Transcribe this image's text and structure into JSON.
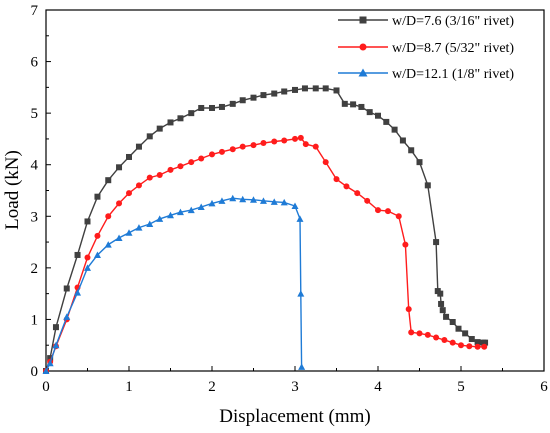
{
  "chart_data": {
    "type": "line",
    "xlabel": "Displacement (mm)",
    "ylabel": "Load (kN)",
    "xlim": [
      0,
      6
    ],
    "ylim": [
      0,
      7
    ],
    "xticks": [
      0,
      1,
      2,
      3,
      4,
      5,
      6
    ],
    "yticks": [
      0,
      1,
      2,
      3,
      4,
      5,
      6,
      7
    ],
    "grid": false,
    "legend_position": "top-right",
    "series": [
      {
        "name": "w/D=7.6 (3/16\" rivet)",
        "color": "#404040",
        "marker": "square",
        "x": [
          0,
          0.05,
          0.12,
          0.25,
          0.38,
          0.5,
          0.62,
          0.75,
          0.88,
          1.0,
          1.12,
          1.25,
          1.37,
          1.5,
          1.62,
          1.75,
          1.87,
          2.0,
          2.12,
          2.25,
          2.37,
          2.5,
          2.62,
          2.75,
          2.87,
          3.0,
          3.12,
          3.25,
          3.37,
          3.5,
          3.6,
          3.7,
          3.8,
          3.9,
          4.0,
          4.1,
          4.2,
          4.3,
          4.4,
          4.5,
          4.6,
          4.7,
          4.72,
          4.75,
          4.76,
          4.78,
          4.82,
          4.9,
          4.97,
          5.05,
          5.13,
          5.2,
          5.27,
          5.29
        ],
        "values": [
          0,
          0.25,
          0.85,
          1.6,
          2.25,
          2.9,
          3.38,
          3.7,
          3.95,
          4.15,
          4.35,
          4.55,
          4.7,
          4.82,
          4.9,
          5.0,
          5.1,
          5.1,
          5.12,
          5.18,
          5.25,
          5.3,
          5.35,
          5.38,
          5.42,
          5.45,
          5.48,
          5.48,
          5.48,
          5.44,
          5.18,
          5.17,
          5.12,
          5.02,
          4.95,
          4.83,
          4.68,
          4.47,
          4.28,
          4.05,
          3.6,
          2.5,
          1.55,
          1.5,
          1.3,
          1.18,
          1.05,
          0.95,
          0.82,
          0.73,
          0.62,
          0.56,
          0.55,
          0.55
        ]
      },
      {
        "name": "w/D=8.7 (5/32\" rivet)",
        "color": "#ff1c1c",
        "marker": "circle",
        "x": [
          0,
          0.05,
          0.12,
          0.25,
          0.38,
          0.5,
          0.62,
          0.75,
          0.88,
          1.0,
          1.12,
          1.25,
          1.37,
          1.5,
          1.62,
          1.75,
          1.87,
          2.0,
          2.12,
          2.25,
          2.37,
          2.5,
          2.62,
          2.75,
          2.87,
          3.0,
          3.07,
          3.13,
          3.25,
          3.37,
          3.5,
          3.62,
          3.75,
          3.87,
          4.0,
          4.12,
          4.25,
          4.33,
          4.37,
          4.4,
          4.5,
          4.6,
          4.7,
          4.8,
          4.9,
          5.0,
          5.1,
          5.2,
          5.28
        ],
        "values": [
          0,
          0.18,
          0.48,
          1.0,
          1.62,
          2.2,
          2.62,
          3.0,
          3.25,
          3.45,
          3.6,
          3.75,
          3.8,
          3.9,
          3.97,
          4.05,
          4.12,
          4.2,
          4.25,
          4.3,
          4.35,
          4.38,
          4.42,
          4.45,
          4.47,
          4.5,
          4.52,
          4.4,
          4.35,
          4.05,
          3.72,
          3.58,
          3.45,
          3.3,
          3.12,
          3.1,
          3.0,
          2.45,
          1.2,
          0.75,
          0.73,
          0.7,
          0.65,
          0.6,
          0.55,
          0.5,
          0.48,
          0.47,
          0.47
        ]
      },
      {
        "name": "w/D=12.1 (1/8\" rivet)",
        "color": "#1f7bd6",
        "marker": "triangle",
        "x": [
          0,
          0.05,
          0.12,
          0.25,
          0.38,
          0.5,
          0.62,
          0.75,
          0.88,
          1.0,
          1.12,
          1.25,
          1.37,
          1.5,
          1.62,
          1.75,
          1.87,
          2.0,
          2.12,
          2.25,
          2.37,
          2.5,
          2.62,
          2.75,
          2.87,
          3.0,
          3.06,
          3.07,
          3.08
        ],
        "values": [
          0,
          0.15,
          0.5,
          1.05,
          1.52,
          2.0,
          2.25,
          2.45,
          2.58,
          2.68,
          2.78,
          2.85,
          2.95,
          3.02,
          3.08,
          3.12,
          3.18,
          3.25,
          3.3,
          3.35,
          3.33,
          3.32,
          3.3,
          3.28,
          3.27,
          3.2,
          2.95,
          1.5,
          0.08
        ]
      }
    ]
  }
}
